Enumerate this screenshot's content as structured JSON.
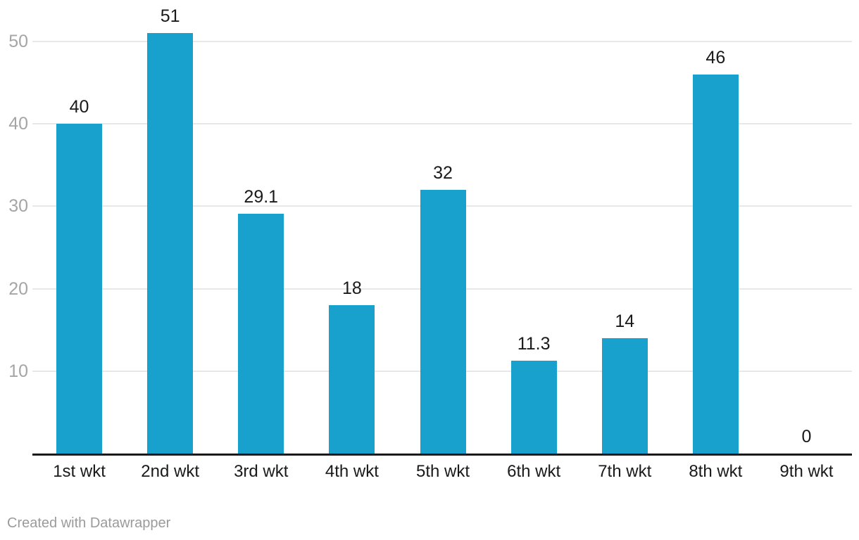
{
  "page": {
    "background": "#ffffff"
  },
  "footer": {
    "credit": "Created with Datawrapper"
  },
  "chart_data": {
    "type": "bar",
    "title": "",
    "xlabel": "",
    "ylabel": "",
    "categories": [
      "1st wkt",
      "2nd wkt",
      "3rd wkt",
      "4th wkt",
      "5th wkt",
      "6th wkt",
      "7th wkt",
      "8th wkt",
      "9th wkt"
    ],
    "values": [
      40,
      51,
      29.1,
      18,
      32,
      11.3,
      14,
      46,
      0
    ],
    "value_labels": [
      "40",
      "51",
      "29.1",
      "18",
      "32",
      "11.3",
      "14",
      "46",
      "0"
    ],
    "ylim": [
      0,
      55
    ],
    "yticks": [
      10,
      20,
      30,
      40,
      50
    ],
    "grid": true,
    "legend": false,
    "colors": {
      "bar": "#18a1cd",
      "grid_line": "#e8e8e8",
      "axis_line": "#1a1a1a",
      "value_label": "#1a1a1a",
      "category_label": "#1a1a1a",
      "ytick_label": "#a5a5a5",
      "credit": "#9b9b9b"
    }
  }
}
